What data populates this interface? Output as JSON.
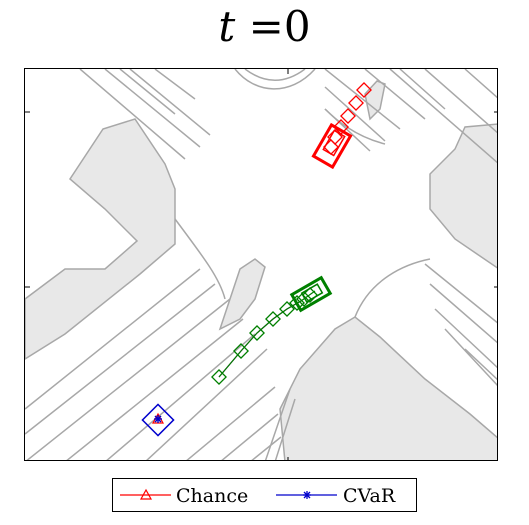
{
  "title": {
    "prefix": "t",
    "suffix": " =0"
  },
  "legend": {
    "items": [
      {
        "label": "Chance",
        "color": "#ff0000",
        "marker": "triangle"
      },
      {
        "label": "CVaR",
        "color": "#0000cc",
        "marker": "asterisk"
      }
    ]
  },
  "colors": {
    "map_fill": "#e8e8e8",
    "map_line": "#a8a8a8",
    "chance": "#ff0000",
    "cvar": "#0000cc",
    "ego_prediction": "#008000",
    "reference_path": "#800080"
  }
}
